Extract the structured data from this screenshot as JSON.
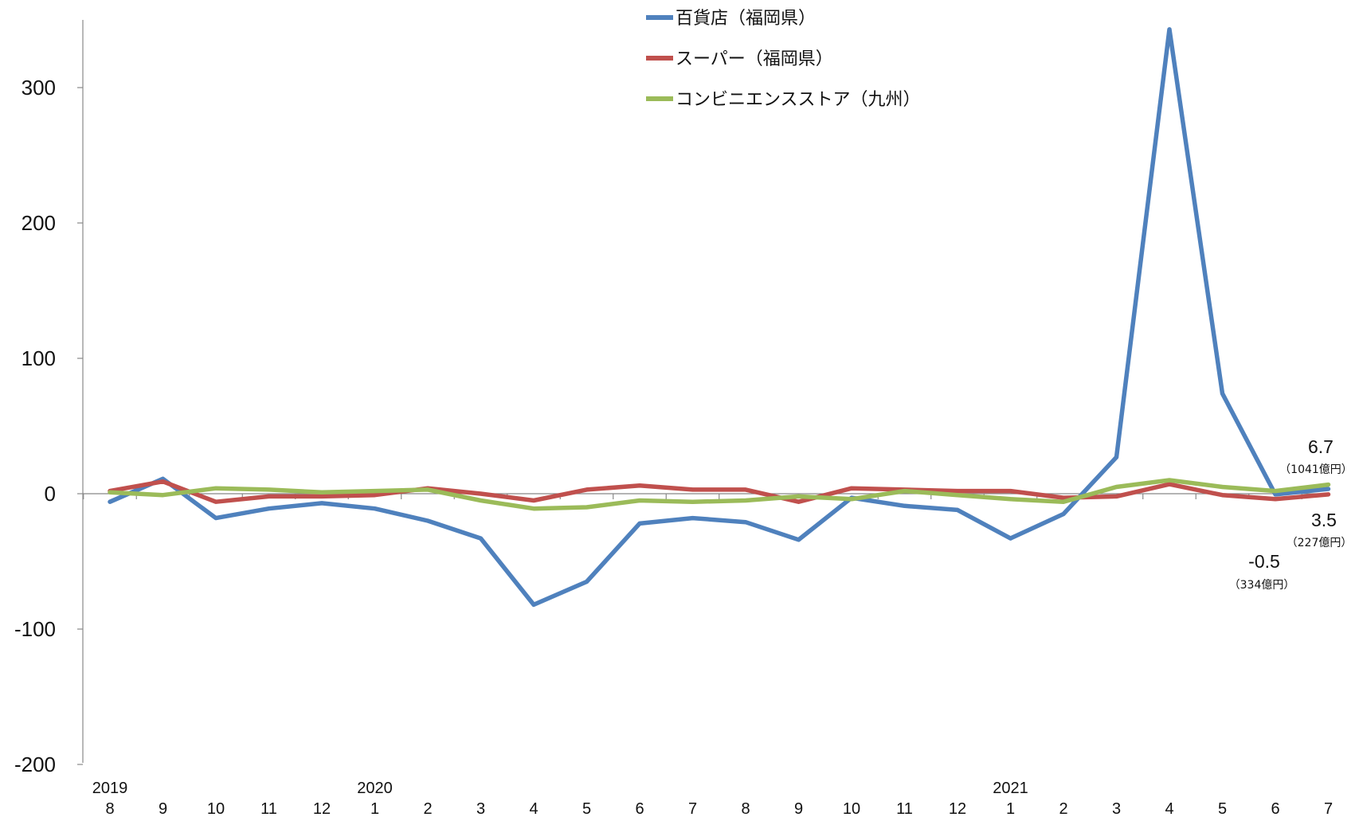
{
  "chart_data": {
    "type": "line",
    "title": "",
    "xlabel": "",
    "ylabel": "",
    "ylim": [
      -200,
      350
    ],
    "yticks": [
      300,
      200,
      100,
      0,
      -100,
      -200
    ],
    "year_labels": [
      {
        "index": 0,
        "text": "2019"
      },
      {
        "index": 5,
        "text": "2020"
      },
      {
        "index": 17,
        "text": "2021"
      }
    ],
    "categories": [
      "8",
      "9",
      "10",
      "11",
      "12",
      "1",
      "2",
      "3",
      "4",
      "5",
      "6",
      "7",
      "8",
      "9",
      "10",
      "11",
      "12",
      "1",
      "2",
      "3",
      "4",
      "5",
      "6",
      "7"
    ],
    "series": [
      {
        "name": "百貨店（福岡県）",
        "color": "#4f81bd",
        "values": [
          -6,
          11,
          -18,
          -11,
          -7,
          -11,
          -20,
          -33,
          -82,
          -65,
          -22,
          -18,
          -21,
          -34,
          -3,
          -9,
          -12,
          -33,
          -15,
          27,
          343,
          74,
          -0.5,
          3.5
        ]
      },
      {
        "name": "スーパー（福岡県）",
        "color": "#c0504d",
        "values": [
          2,
          9,
          -6,
          -2,
          -2,
          -1,
          4,
          0,
          -5,
          3,
          6,
          3,
          3,
          -6,
          4,
          3,
          2,
          2,
          -3,
          -2,
          7,
          -1,
          -4,
          -0.5
        ]
      },
      {
        "name": "コンビニエンスストア（九州）",
        "color": "#9bbb59",
        "values": [
          1,
          -1,
          4,
          3,
          1,
          2,
          3,
          -5,
          -11,
          -10,
          -5,
          -6,
          -5,
          -2,
          -4,
          2,
          -1,
          -4,
          -6,
          5,
          10,
          5,
          2,
          6.7
        ]
      }
    ],
    "annotations": [
      {
        "value": "6.7",
        "sub": "（1041億円）"
      },
      {
        "value": "3.5",
        "sub": "（227億円）"
      },
      {
        "value": "-0.5",
        "sub": "（334億円）"
      }
    ]
  }
}
